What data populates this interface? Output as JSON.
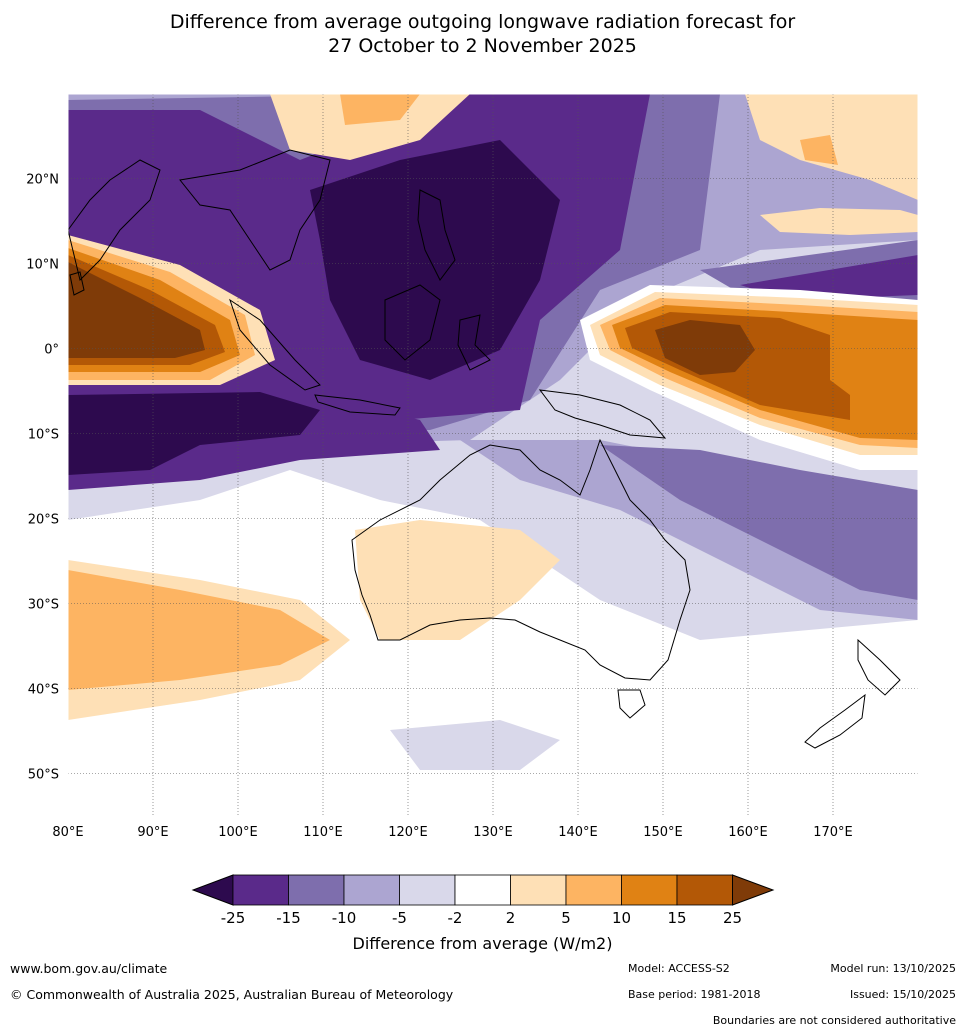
{
  "title": {
    "line1": "Difference from average outgoing longwave radiation forecast for",
    "line2": "27 October to 2 November 2025"
  },
  "map": {
    "lon_labels": [
      "80°E",
      "90°E",
      "100°E",
      "110°E",
      "120°E",
      "130°E",
      "140°E",
      "150°E",
      "160°E",
      "170°E"
    ],
    "lat_labels": [
      "20°N",
      "10°N",
      "0°",
      "10°S",
      "20°S",
      "30°S",
      "40°S",
      "50°S"
    ],
    "lon_range": [
      80,
      180
    ],
    "lat_range": [
      -55,
      30
    ]
  },
  "colorbar": {
    "ticks": [
      "-25",
      "-15",
      "-10",
      "-5",
      "-2",
      "2",
      "5",
      "10",
      "15",
      "25"
    ],
    "colors": [
      "#2d0a4e",
      "#5a2a8a",
      "#7e6ead",
      "#aca5d1",
      "#d9d8ea",
      "#ffffff",
      "#fee0b6",
      "#fdb462",
      "#e08214",
      "#b35806",
      "#7f3b08"
    ],
    "label": "Difference from average (W/m2)"
  },
  "footer": {
    "url": "www.bom.gov.au/climate",
    "copyright": "© Commonwealth of Australia 2025, Australian Bureau of Meteorology",
    "model": "Model: ACCESS-S2",
    "base_period": "Base period: 1981-2018",
    "model_run": "Model run: 13/10/2025",
    "issued": "Issued: 15/10/2025",
    "disclaimer": "Boundaries are not considered authoritative"
  }
}
